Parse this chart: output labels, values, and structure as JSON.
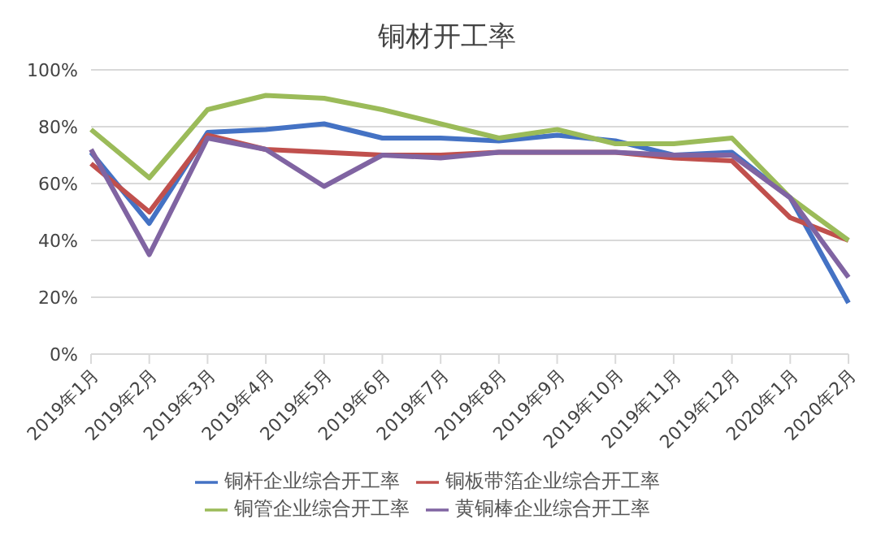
{
  "chart_data": {
    "type": "line",
    "title": "铜材开工率",
    "categories": [
      "2019年1月",
      "2019年2月",
      "2019年3月",
      "2019年4月",
      "2019年5月",
      "2019年6月",
      "2019年7月",
      "2019年8月",
      "2019年9月",
      "2019年10月",
      "2019年11月",
      "2019年12月",
      "2020年1月",
      "2020年2月"
    ],
    "series": [
      {
        "name": "铜杆企业综合开工率",
        "color": "#4472c4",
        "values": [
          71,
          46,
          78,
          79,
          81,
          76,
          76,
          75,
          77,
          75,
          70,
          71,
          55,
          18
        ]
      },
      {
        "name": "铜板带箔企业综合开工率",
        "color": "#c0504d",
        "values": [
          67,
          50,
          77,
          72,
          71,
          70,
          70,
          71,
          71,
          71,
          69,
          68,
          48,
          40
        ]
      },
      {
        "name": "铜管企业综合开工率",
        "color": "#9bbb59",
        "values": [
          79,
          62,
          86,
          91,
          90,
          86,
          81,
          76,
          79,
          74,
          74,
          76,
          55,
          40
        ]
      },
      {
        "name": "黄铜棒企业综合开工率",
        "color": "#8064a2",
        "values": [
          72,
          35,
          76,
          72,
          59,
          70,
          69,
          71,
          71,
          71,
          70,
          70,
          55,
          27
        ]
      }
    ],
    "ylim": [
      0,
      100
    ],
    "yticks": [
      {
        "value": 0,
        "label": "0%"
      },
      {
        "value": 20,
        "label": "20%"
      },
      {
        "value": 40,
        "label": "40%"
      },
      {
        "value": 60,
        "label": "60%"
      },
      {
        "value": 80,
        "label": "80%"
      },
      {
        "value": 100,
        "label": "100%"
      }
    ],
    "grid": "y",
    "legend": "bottom",
    "marker": "none",
    "line_style": "solid"
  }
}
